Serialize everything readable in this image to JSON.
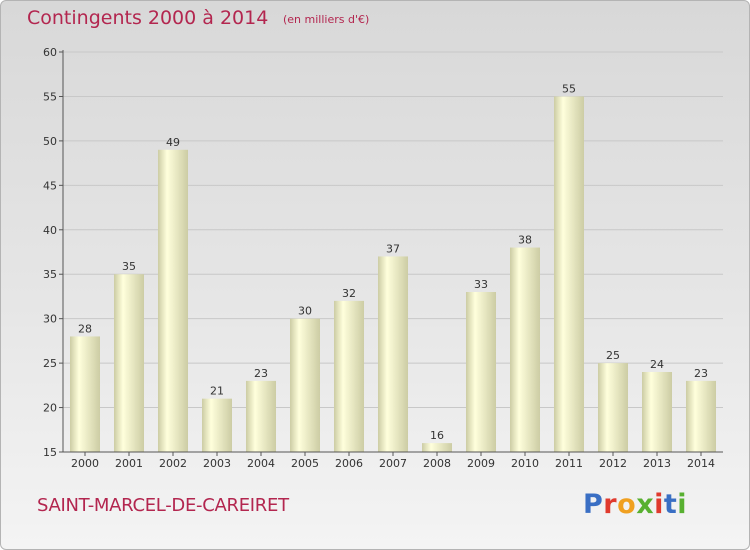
{
  "header": {
    "title": "Contingents 2000 à 2014",
    "subtitle": "(en milliers d'€)"
  },
  "footer": {
    "commune": "SAINT-MARCEL-DE-CAREIRET",
    "logo": {
      "text": "Proxiti",
      "letter_colors": [
        "#3a6fc4",
        "#e03a2e",
        "#f0a020",
        "#58b030",
        "#e03a2e",
        "#3a6fc4",
        "#58b030"
      ]
    }
  },
  "colors": {
    "title": "#b3264f",
    "bar_light": "#ffffdc",
    "bar_dark": "#cccca4",
    "axis": "#555555",
    "grid": "#c8c8c8"
  },
  "chart_data": {
    "type": "bar",
    "title": "Contingents 2000 à 2014",
    "subtitle": "(en milliers d'€)",
    "categories": [
      "2000",
      "2001",
      "2002",
      "2003",
      "2004",
      "2005",
      "2006",
      "2007",
      "2008",
      "2009",
      "2010",
      "2011",
      "2012",
      "2013",
      "2014"
    ],
    "values": [
      28,
      35,
      49,
      21,
      23,
      30,
      32,
      37,
      16,
      33,
      38,
      55,
      25,
      24,
      23
    ],
    "ylim": [
      15,
      60
    ],
    "yticks": [
      15,
      20,
      25,
      30,
      35,
      40,
      45,
      50,
      55,
      60
    ],
    "grid": true,
    "data_labels": true
  }
}
